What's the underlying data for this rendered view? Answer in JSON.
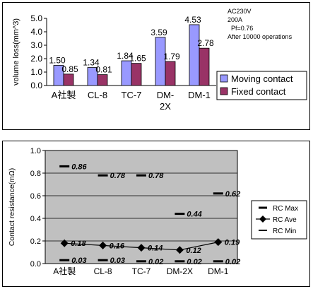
{
  "chart_data": [
    {
      "type": "bar",
      "categories": [
        "A社製",
        "CL-8",
        "TC-7",
        "DM-2X",
        "DM-1"
      ],
      "category_lines": [
        [
          "A社製"
        ],
        [
          "CL-8"
        ],
        [
          "TC-7"
        ],
        [
          "DM-",
          "2X"
        ],
        [
          "DM-1"
        ]
      ],
      "series": [
        {
          "name": "Moving contact",
          "values": [
            1.5,
            1.34,
            1.84,
            3.59,
            4.53
          ],
          "labels": [
            "1.50",
            "1.34",
            "1.84",
            "3.59",
            "4.53"
          ],
          "color": "#9999ff"
        },
        {
          "name": "Fixed contact",
          "values": [
            0.85,
            0.81,
            1.65,
            1.79,
            2.78
          ],
          "labels": [
            "0.85",
            "0.81",
            "1.65",
            "1.79",
            "2.78"
          ],
          "color": "#993366"
        }
      ],
      "ylabel": "volume loss(mm^3)",
      "ylim": [
        0,
        5
      ],
      "yticks": [
        0,
        1,
        2,
        3,
        4,
        5
      ],
      "ytick_labels": [
        "0.0",
        "1.0",
        "2.0",
        "3.0",
        "4.0",
        "5.0"
      ],
      "grid": false,
      "legend": "right",
      "annotations": [
        "AC230V",
        "200A",
        "Pf=0.76",
        "After 10000 operations"
      ]
    },
    {
      "type": "line",
      "categories": [
        "A社製",
        "CL-8",
        "TC-7",
        "DM-2X",
        "DM-1"
      ],
      "series": [
        {
          "name": "RC Max",
          "values": [
            0.86,
            0.78,
            0.78,
            0.44,
            0.62
          ],
          "labels": [
            "0.86",
            "0.78",
            "0.78",
            "0.44",
            "0.62"
          ]
        },
        {
          "name": "RC Ave",
          "values": [
            0.18,
            0.16,
            0.14,
            0.12,
            0.19
          ],
          "labels": [
            "0.18",
            "0.16",
            "0.14",
            "0.12",
            "0.19"
          ]
        },
        {
          "name": "RC Min",
          "values": [
            0.03,
            0.03,
            0.02,
            0.02,
            0.02
          ],
          "labels": [
            "0.03",
            "0.03",
            "0.02",
            "0.02",
            "0.02"
          ]
        }
      ],
      "ylabel": "Contact resistance(mΩ)",
      "ylim": [
        0,
        1
      ],
      "yticks": [
        0,
        0.2,
        0.4,
        0.6,
        0.8,
        1.0
      ],
      "ytick_labels": [
        "0.0",
        "0.2",
        "0.4",
        "0.6",
        "0.8",
        "1.0"
      ],
      "grid": true,
      "plot_background": "#c0c0c0",
      "legend": "right"
    }
  ]
}
